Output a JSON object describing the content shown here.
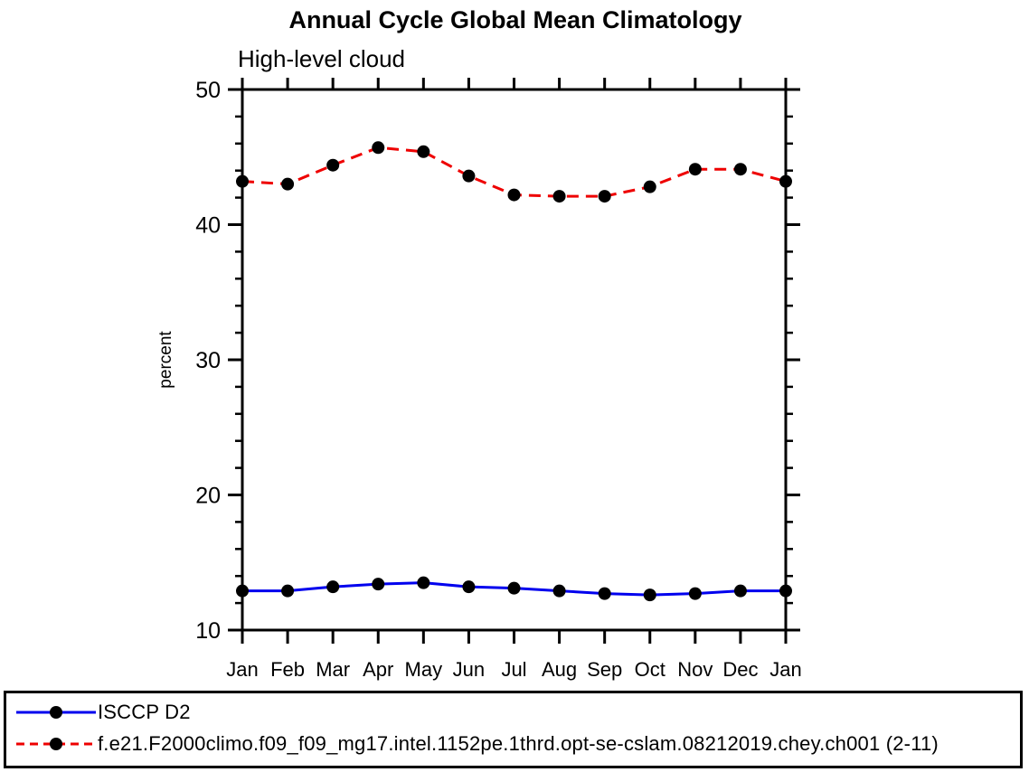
{
  "chart_data": {
    "type": "line",
    "title": "Annual Cycle Global Mean Climatology",
    "subtitle": "High-level cloud",
    "xlabel": "",
    "ylabel": "percent",
    "x_labels": [
      "Jan",
      "Feb",
      "Mar",
      "Apr",
      "May",
      "Jun",
      "Jul",
      "Aug",
      "Sep",
      "Oct",
      "Nov",
      "Dec",
      "Jan"
    ],
    "ylim": [
      10,
      50
    ],
    "y_major_step": 10,
    "y_minor_step": 2,
    "grid": "off",
    "legend_position": "bottom-outside-box",
    "axis_color": "#000000",
    "marker_color": "#000000",
    "series": [
      {
        "name": "ISCCP D2",
        "color": "#0000EE",
        "line_style": "solid",
        "marker": "filled-circle",
        "values": [
          12.9,
          12.9,
          13.2,
          13.4,
          13.5,
          13.2,
          13.1,
          12.9,
          12.7,
          12.6,
          12.7,
          12.9,
          12.9
        ]
      },
      {
        "name": "f.e21.F2000climo.f09_f09_mg17.intel.1152pe.1thrd.opt-se-cslam.08212019.chey.ch001 (2-11)",
        "color": "#EE0000",
        "line_style": "dashed",
        "marker": "filled-circle",
        "values": [
          43.2,
          43.0,
          44.4,
          45.7,
          45.4,
          43.6,
          42.2,
          42.1,
          42.1,
          42.8,
          44.1,
          44.1,
          43.2
        ]
      }
    ]
  }
}
